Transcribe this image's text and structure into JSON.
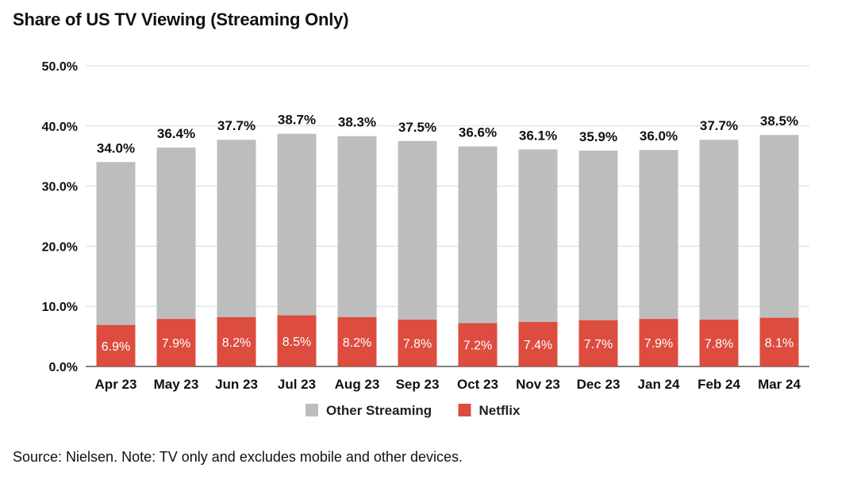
{
  "page": {
    "title": "Share of US TV Viewing (Streaming Only)",
    "source_note": "Source: Nielsen. Note: TV only and excludes mobile and other devices."
  },
  "colors": {
    "other_streaming": "#bdbdbd",
    "netflix": "#dc4c3f",
    "grid": "#d9d9d9",
    "axis": "#555555"
  },
  "chart_data": {
    "type": "bar",
    "stacked": true,
    "title": "Share of US TV Viewing (Streaming Only)",
    "categories": [
      "Apr 23",
      "May 23",
      "Jun 23",
      "Jul 23",
      "Aug 23",
      "Sep 23",
      "Oct 23",
      "Nov 23",
      "Dec 23",
      "Jan 24",
      "Feb 24",
      "Mar 24"
    ],
    "series": [
      {
        "name": "Netflix",
        "values": [
          6.9,
          7.9,
          8.2,
          8.5,
          8.2,
          7.8,
          7.2,
          7.4,
          7.7,
          7.9,
          7.8,
          8.1
        ],
        "labels": [
          "6.9%",
          "7.9%",
          "8.2%",
          "8.5%",
          "8.2%",
          "7.8%",
          "7.2%",
          "7.4%",
          "7.7%",
          "7.9%",
          "7.8%",
          "8.1%"
        ]
      },
      {
        "name": "Other Streaming",
        "values": [
          27.1,
          28.5,
          29.5,
          30.2,
          30.1,
          29.7,
          29.4,
          28.7,
          28.2,
          28.1,
          29.9,
          30.4
        ]
      }
    ],
    "totals": [
      34.0,
      36.4,
      37.7,
      38.7,
      38.3,
      37.5,
      36.6,
      36.1,
      35.9,
      36.0,
      37.7,
      38.5
    ],
    "total_labels": [
      "34.0%",
      "36.4%",
      "37.7%",
      "38.7%",
      "38.3%",
      "37.5%",
      "36.6%",
      "36.1%",
      "35.9%",
      "36.0%",
      "37.7%",
      "38.5%"
    ],
    "ylim": [
      0,
      50
    ],
    "yticks": [
      0,
      10,
      20,
      30,
      40,
      50
    ],
    "ytick_labels": [
      "0.0%",
      "10.0%",
      "20.0%",
      "30.0%",
      "40.0%",
      "50.0%"
    ],
    "xlabel": "",
    "ylabel": "",
    "grid": true,
    "legend": {
      "position": "bottom",
      "entries": [
        "Other Streaming",
        "Netflix"
      ]
    }
  }
}
